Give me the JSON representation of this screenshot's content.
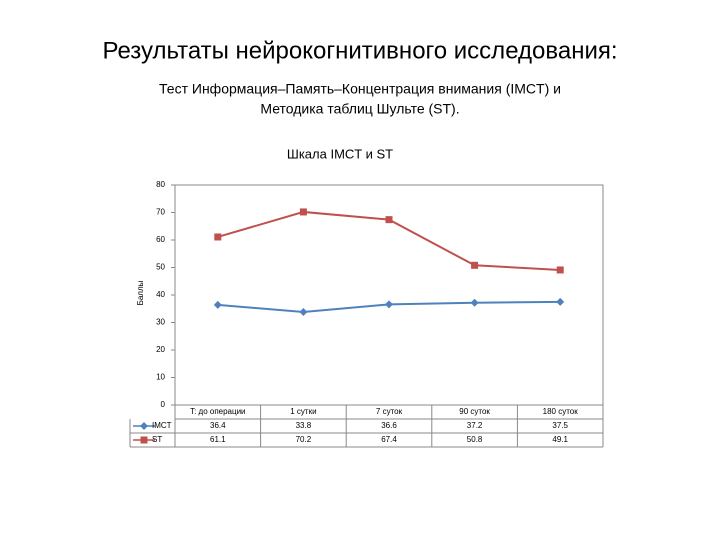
{
  "slide": {
    "title": "Результаты нейрокогнитивного исследования:",
    "subtitle": [
      "Тест Информация–Память–Концентрация внимания (IMCT) и",
      "Методика таблиц Шульте (ST)."
    ]
  },
  "chart_data": {
    "type": "line",
    "title": "Шкала IMCT и ST",
    "y_label": "Баллы",
    "categories": [
      "T: до операции",
      "1 сутки",
      "7 суток",
      "90 суток",
      "180 суток"
    ],
    "series": [
      {
        "name": "IMCT",
        "color": "#4f81bd",
        "marker": "diamond",
        "values": [
          36.4,
          33.8,
          36.6,
          37.2,
          37.5
        ]
      },
      {
        "name": "ST",
        "color": "#c0504d",
        "marker": "square",
        "values": [
          61.1,
          70.2,
          67.4,
          50.8,
          49.1
        ]
      }
    ],
    "ylim": [
      0,
      80
    ],
    "yticks": [
      0,
      10,
      20,
      30,
      40,
      50,
      60,
      70,
      80
    ],
    "grid": false,
    "data_table": true
  }
}
